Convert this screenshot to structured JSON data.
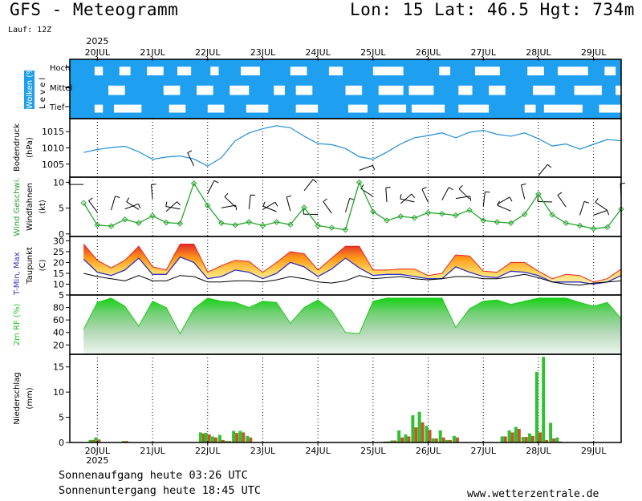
{
  "header": {
    "title": "GFS - Meteogramm",
    "location": "Lon: 15 Lat: 46.5 Hgt: 734m",
    "run": "Lauf: 12Z"
  },
  "footer": {
    "sunrise": "Sonnenaufgang heute 03:26 UTC",
    "sunset": "Sonnenuntergang heute 18:45 UTC",
    "credit": "www.wetterzentrale.de"
  },
  "colors": {
    "cloud_sky": "#1e9fef",
    "pressure": "#1f8fd8",
    "wind": "#22a52a",
    "tmin": "#3030c0",
    "tmax": "#e82020",
    "dewpoint": "#000000",
    "humidity": "#22c81e",
    "precip_total": "#2fc22f",
    "precip_conv": "#c05a2a"
  },
  "chart_data": {
    "year": "2025",
    "date_ticks": [
      "20JUL",
      "21JUL",
      "22JUL",
      "23JUL",
      "24JUL",
      "25JUL",
      "26JUL",
      "27JUL",
      "28JUL",
      "29JUL"
    ],
    "panels": [
      {
        "name": "clouds",
        "type": "heatmap",
        "ylabel": "Wolken (%)",
        "ylabel2": "L e v e l",
        "levels": [
          "Hoch",
          "Mittel",
          "Tief"
        ],
        "cloud_segments": {
          "Hoch": [
            [
              19.95,
              20.1
            ],
            [
              20.4,
              20.6
            ],
            [
              20.9,
              21.2
            ],
            [
              21.45,
              21.7
            ],
            [
              22.05,
              22.2
            ],
            [
              22.6,
              22.95
            ],
            [
              23.5,
              23.8
            ],
            [
              24.2,
              24.45
            ],
            [
              25.0,
              25.55
            ],
            [
              26.2,
              26.4
            ],
            [
              26.85,
              27.3
            ],
            [
              27.8,
              28.1
            ],
            [
              28.35,
              28.9
            ],
            [
              29.2,
              29.4
            ]
          ],
          "Mittel": [
            [
              20.2,
              20.5
            ],
            [
              21.2,
              21.5
            ],
            [
              21.8,
              22.1
            ],
            [
              22.4,
              22.75
            ],
            [
              23.2,
              23.4
            ],
            [
              23.6,
              23.9
            ],
            [
              24.5,
              24.8
            ],
            [
              25.1,
              25.55
            ],
            [
              25.65,
              26.1
            ],
            [
              26.55,
              26.8
            ],
            [
              27.1,
              27.4
            ],
            [
              27.9,
              28.3
            ],
            [
              28.65,
              29.15
            ],
            [
              29.4,
              29.55
            ]
          ],
          "Tief": [
            [
              19.95,
              20.1
            ],
            [
              20.3,
              20.8
            ],
            [
              21.3,
              21.6
            ],
            [
              22.0,
              22.3
            ],
            [
              22.7,
              23.1
            ],
            [
              23.6,
              24.0
            ],
            [
              24.55,
              24.9
            ],
            [
              25.1,
              25.6
            ],
            [
              25.7,
              26.3
            ],
            [
              26.55,
              27.1
            ],
            [
              27.75,
              27.95
            ],
            [
              28.1,
              28.8
            ],
            [
              29.1,
              29.5
            ]
          ]
        }
      },
      {
        "name": "pressure",
        "type": "line",
        "ylabel": "Bodendruck",
        "unit": "(hPa)",
        "yticks": [
          1005,
          1010,
          1015
        ],
        "ylim": [
          1001,
          1019
        ],
        "x": [
          19.75,
          20.0,
          20.25,
          20.5,
          20.75,
          21.0,
          21.25,
          21.5,
          21.75,
          22.0,
          22.25,
          22.5,
          22.75,
          23.0,
          23.25,
          23.5,
          23.75,
          24.0,
          24.25,
          24.5,
          24.75,
          25.0,
          25.25,
          25.5,
          25.75,
          26.0,
          26.25,
          26.5,
          26.75,
          27.0,
          27.25,
          27.5,
          27.75,
          28.0,
          28.25,
          28.5,
          28.75,
          29.0,
          29.25,
          29.5
        ],
        "y": [
          1008.6,
          1009.5,
          1010.1,
          1010.5,
          1008.8,
          1006.5,
          1007.2,
          1007.5,
          1006.6,
          1004.4,
          1007.0,
          1012.2,
          1014.6,
          1015.9,
          1016.8,
          1016.2,
          1013.6,
          1011.3,
          1011.0,
          1009.8,
          1007.3,
          1006.5,
          1008.7,
          1011.2,
          1013.1,
          1013.8,
          1014.6,
          1013.1,
          1014.8,
          1015.4,
          1014.2,
          1013.6,
          1014.6,
          1012.8,
          1010.6,
          1011.2,
          1009.6,
          1011.1,
          1012.6,
          1012.2
        ]
      },
      {
        "name": "wind",
        "type": "line",
        "ylabel": "Wind Geschwi.",
        "ylabel2": "Windfahnen",
        "unit": "(kt)",
        "yticks": [
          0,
          5,
          10
        ],
        "ylim": [
          -0.5,
          11
        ],
        "x": [
          19.75,
          20.0,
          20.25,
          20.5,
          20.75,
          21.0,
          21.25,
          21.5,
          21.75,
          22.0,
          22.25,
          22.5,
          22.75,
          23.0,
          23.25,
          23.5,
          23.75,
          24.0,
          24.25,
          24.5,
          24.75,
          25.0,
          25.25,
          25.5,
          25.75,
          26.0,
          26.25,
          26.5,
          26.75,
          27.0,
          27.25,
          27.5,
          27.75,
          28.0,
          28.25,
          28.5,
          28.75,
          29.0,
          29.25,
          29.5
        ],
        "y": [
          6.0,
          1.7,
          1.5,
          2.8,
          2.1,
          3.5,
          2.2,
          2.0,
          9.8,
          5.5,
          2.1,
          1.7,
          2.3,
          1.6,
          2.3,
          1.8,
          5.1,
          1.6,
          1.2,
          0.8,
          10.0,
          4.3,
          2.6,
          3.4,
          3.1,
          4.1,
          3.9,
          3.6,
          4.6,
          2.6,
          2.3,
          2.1,
          3.8,
          7.7,
          3.7,
          2.1,
          1.6,
          1.0,
          1.3,
          4.8
        ]
      },
      {
        "name": "temperature",
        "type": "area",
        "ylabel": "T-Min, Max",
        "ylabel2": "Taupunkt",
        "unit": "(C)",
        "yticks": [
          5,
          10,
          15,
          20,
          25,
          30
        ],
        "ylim": [
          5,
          32
        ],
        "x": [
          19.75,
          20.0,
          20.25,
          20.5,
          20.75,
          21.0,
          21.25,
          21.5,
          21.75,
          22.0,
          22.25,
          22.5,
          22.75,
          23.0,
          23.25,
          23.5,
          23.75,
          24.0,
          24.25,
          24.5,
          24.75,
          25.0,
          25.25,
          25.5,
          25.75,
          26.0,
          26.25,
          26.5,
          26.75,
          27.0,
          27.25,
          27.5,
          27.75,
          28.0,
          28.25,
          28.5,
          28.75,
          29.0,
          29.25,
          29.5
        ],
        "tmax": [
          28.5,
          21.0,
          17.5,
          21.0,
          27.5,
          18.0,
          16.5,
          28.5,
          28.5,
          15.5,
          18.5,
          21.0,
          20.5,
          15.5,
          20.0,
          25.0,
          24.0,
          16.5,
          22.0,
          27.5,
          27.5,
          16.5,
          16.5,
          17.0,
          17.0,
          14.0,
          15.0,
          23.5,
          23.0,
          16.0,
          15.5,
          20.0,
          20.0,
          16.0,
          12.5,
          14.5,
          14.0,
          11.0,
          12.5,
          17.0
        ],
        "tmin": [
          21.5,
          15.5,
          14.0,
          16.5,
          22.0,
          14.5,
          14.5,
          22.5,
          20.0,
          12.5,
          13.5,
          16.5,
          15.5,
          12.5,
          15.0,
          20.0,
          18.0,
          13.5,
          17.0,
          22.0,
          17.5,
          14.0,
          14.5,
          14.5,
          13.5,
          12.5,
          12.5,
          18.0,
          15.5,
          13.5,
          13.0,
          16.0,
          15.5,
          14.0,
          11.0,
          11.0,
          11.0,
          10.0,
          11.0,
          14.0
        ],
        "dewpoint": [
          15.0,
          13.5,
          12.5,
          11.5,
          14.0,
          11.5,
          11.5,
          14.0,
          13.5,
          11.0,
          11.0,
          11.5,
          11.5,
          11.0,
          12.0,
          13.5,
          12.5,
          11.0,
          10.5,
          11.5,
          14.0,
          12.5,
          13.0,
          13.5,
          12.5,
          12.0,
          12.5,
          13.5,
          13.5,
          12.5,
          12.5,
          13.5,
          14.5,
          13.0,
          11.0,
          10.0,
          9.5,
          10.5,
          11.0,
          11.5
        ]
      },
      {
        "name": "humidity",
        "type": "area",
        "ylabel": "2m RF (%)",
        "yticks": [
          20,
          40,
          60,
          80
        ],
        "ylim": [
          5,
          100
        ],
        "x": [
          19.75,
          20.0,
          20.25,
          20.5,
          20.75,
          21.0,
          21.25,
          21.5,
          21.75,
          22.0,
          22.25,
          22.5,
          22.75,
          23.0,
          23.25,
          23.5,
          23.75,
          24.0,
          24.25,
          24.5,
          24.75,
          25.0,
          25.25,
          25.5,
          25.75,
          26.0,
          26.25,
          26.5,
          26.75,
          27.0,
          27.25,
          27.5,
          27.75,
          28.0,
          28.25,
          28.5,
          28.75,
          29.0,
          29.25,
          29.5
        ],
        "y": [
          45,
          88,
          95,
          82,
          50,
          90,
          80,
          38,
          78,
          95,
          90,
          88,
          80,
          90,
          88,
          55,
          80,
          92,
          75,
          40,
          38,
          90,
          95,
          95,
          95,
          95,
          95,
          48,
          78,
          90,
          92,
          85,
          90,
          95,
          95,
          95,
          88,
          82,
          88,
          62
        ]
      },
      {
        "name": "precipitation",
        "type": "bar",
        "ylabel": "Niederschlag",
        "unit": "(mm)",
        "yticks": [
          0,
          5,
          10,
          15
        ],
        "ylim": [
          0,
          17.5
        ],
        "bars": [
          {
            "x": 19.9,
            "total": 0.5,
            "conv": 0.5
          },
          {
            "x": 20.0,
            "total": 1.0,
            "conv": 0.6
          },
          {
            "x": 20.5,
            "total": 0.3,
            "conv": 0.3
          },
          {
            "x": 21.9,
            "total": 2.0,
            "conv": 1.8
          },
          {
            "x": 22.0,
            "total": 1.9,
            "conv": 1.6
          },
          {
            "x": 22.12,
            "total": 1.2,
            "conv": 1.0
          },
          {
            "x": 22.25,
            "total": 1.5,
            "conv": 0.5
          },
          {
            "x": 22.37,
            "total": 0.3,
            "conv": 0.3
          },
          {
            "x": 22.5,
            "total": 2.3,
            "conv": 1.9
          },
          {
            "x": 22.62,
            "total": 2.3,
            "conv": 2.0
          },
          {
            "x": 22.75,
            "total": 1.3,
            "conv": 1.0
          },
          {
            "x": 25.25,
            "total": 0.2,
            "conv": 0.2
          },
          {
            "x": 25.37,
            "total": 0.4,
            "conv": 0.4
          },
          {
            "x": 25.5,
            "total": 2.4,
            "conv": 1.0
          },
          {
            "x": 25.62,
            "total": 1.6,
            "conv": 1.2
          },
          {
            "x": 25.75,
            "total": 5.4,
            "conv": 3.0
          },
          {
            "x": 25.87,
            "total": 6.1,
            "conv": 4.0
          },
          {
            "x": 26.0,
            "total": 3.3,
            "conv": 2.5
          },
          {
            "x": 26.12,
            "total": 0.8,
            "conv": 0.8
          },
          {
            "x": 26.25,
            "total": 2.4,
            "conv": 1.0
          },
          {
            "x": 26.37,
            "total": 0.5,
            "conv": 0.5
          },
          {
            "x": 26.5,
            "total": 1.3,
            "conv": 1.0
          },
          {
            "x": 27.37,
            "total": 1.2,
            "conv": 1.2
          },
          {
            "x": 27.5,
            "total": 2.4,
            "conv": 2.0
          },
          {
            "x": 27.62,
            "total": 3.1,
            "conv": 2.7
          },
          {
            "x": 27.75,
            "total": 1.1,
            "conv": 1.1
          },
          {
            "x": 27.87,
            "total": 1.8,
            "conv": 1.3
          },
          {
            "x": 28.0,
            "total": 14.0,
            "conv": 2.0
          },
          {
            "x": 28.12,
            "total": 17.0,
            "conv": 0.5
          },
          {
            "x": 28.25,
            "total": 3.9,
            "conv": 0.8
          },
          {
            "x": 28.37,
            "total": 1.0,
            "conv": 0.2
          }
        ]
      }
    ]
  }
}
